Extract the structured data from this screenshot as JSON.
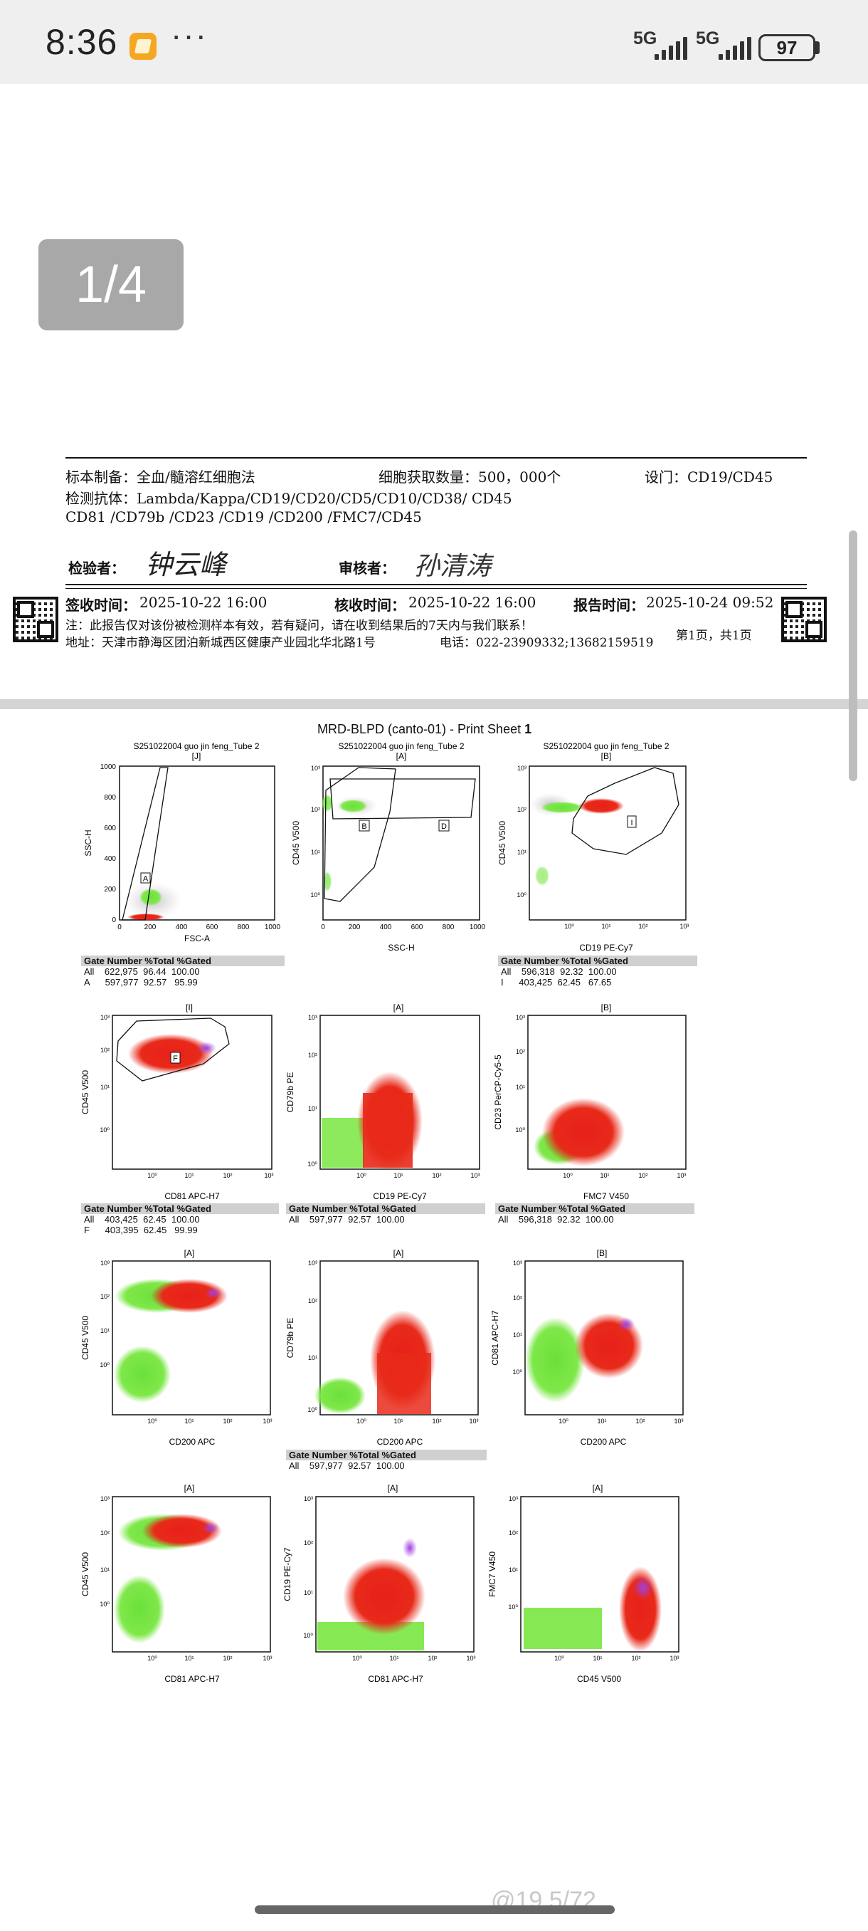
{
  "status_bar": {
    "time": "8:36",
    "more": "···",
    "network1": "5G",
    "network2": "5G",
    "battery": "97"
  },
  "page_indicator": "1/4",
  "report": {
    "row1": {
      "specimen": "标本制备：全血/髓溶红细胞法",
      "cell_count": "细胞获取数量：500，000个",
      "gating": "设门：CD19/CD45"
    },
    "antibodies_line1": "检测抗体：Lambda/Kappa/CD19/CD20/CD5/CD10/CD38/ CD45",
    "antibodies_line2": "CD81 /CD79b /CD23 /CD19 /CD200 /FMC7/CD45",
    "inspector_label": "检验者：",
    "inspector_signature": "钟云峰",
    "reviewer_label": "审核者：",
    "reviewer_signature": "孙清涛",
    "sign_time_label": "签收时间：",
    "sign_time": "2025-10-22 16:00",
    "receive_time_label": "核收时间：",
    "receive_time": "2025-10-22 16:00",
    "report_time_label": "报告时间：",
    "report_time": "2025-10-24 09:52",
    "note": "注：此报告仅对该份被检测样本有效，若有疑问，请在收到结果后的7天内与我们联系！",
    "address": "地址：天津市静海区团泊新城西区健康产业园北华北路1号",
    "phone": "电话：022-23909332;13682159519",
    "page_info": "第1页，共1页"
  },
  "sheet": {
    "title": "MRD-BLPD (canto-01) - Print Sheet ",
    "title_num": "1",
    "sample": "S251022004 guo jin feng_Tube 2",
    "gate_j": "[J]",
    "gate_a": "[A]",
    "gate_b": "[B]",
    "gate_i": "[I]",
    "axes": {
      "fsc_a": "FSC-A",
      "ssc_h": "SSC-H",
      "cd45_v500": "CD45 V500",
      "cd19_pecy7": "CD19 PE-Cy7",
      "cd81_apch7": "CD81 APC-H7",
      "cd79b_pe": "CD79b PE",
      "cd23_percp": "CD23 PerCP-Cy5-5",
      "fmc7_v450": "FMC7 V450",
      "cd200_apc": "CD200 APC"
    },
    "gate_labels": {
      "A": "A",
      "B": "B",
      "D": "D",
      "I": "I",
      "F": "F"
    },
    "ticks_lin": [
      "0",
      "200",
      "400",
      "600",
      "800",
      "1000"
    ],
    "ticks_log": [
      "10⁰",
      "10¹",
      "10²",
      "10³"
    ],
    "tables": {
      "header": "Gate Number %Total %Gated",
      "t1": [
        "All    622,975  96.44  100.00",
        "A      597,977  92.57   95.99"
      ],
      "t2": [
        "All    596,318  92.32  100.00",
        "I      403,425  62.45   67.65"
      ],
      "t3": [
        "All    403,425  62.45  100.00",
        "F      403,395  62.45   99.99"
      ],
      "t4": [
        "All    597,977  92.57  100.00"
      ],
      "t5": [
        "All    596,318  92.32  100.00"
      ],
      "t6": [
        "All    597,977  92.57  100.00"
      ]
    }
  },
  "watermark": "@19.5/72"
}
